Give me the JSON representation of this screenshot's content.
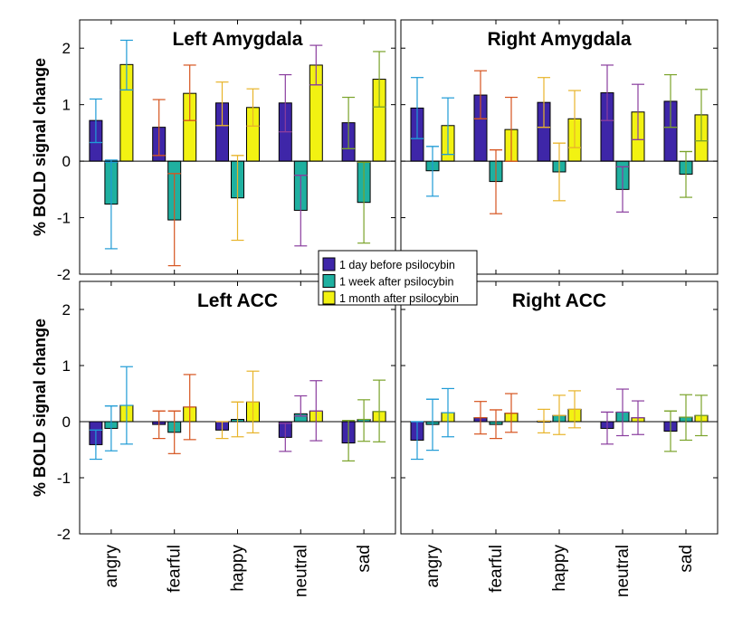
{
  "chart_data": {
    "type": "bar",
    "ylabel": "% BOLD signal change",
    "ylim": [
      -2,
      2.5
    ],
    "yticks": [
      "-2",
      "-1",
      "0",
      "1",
      "2"
    ],
    "categories": [
      "angry",
      "fearful",
      "happy",
      "neutral",
      "sad"
    ],
    "legend": {
      "placement": "center",
      "entries": [
        "1 day before psilocybin",
        "1 week after psilocybin",
        "1 month after psilocybin"
      ]
    },
    "colors": {
      "series": [
        "#3e26a8",
        "#1fb0a0",
        "#f2f212"
      ],
      "errorbars": [
        "#1f9bd6",
        "#d6541f",
        "#e8b42a",
        "#8a3d9e",
        "#7aa32a"
      ],
      "zero_line": "#000000",
      "median_line": [
        "#1f9bd6",
        "#d6541f",
        "#e8b42a",
        "#8a3d9e",
        "#7aa32a"
      ]
    },
    "panels": [
      {
        "title": "Left Amygdala",
        "series": [
          {
            "name": "1 day before psilocybin",
            "values": [
              0.72,
              0.6,
              1.03,
              1.03,
              0.68
            ],
            "lower": [
              0.33,
              0.1,
              0.63,
              0.52,
              0.22
            ],
            "upper": [
              1.1,
              1.09,
              1.4,
              1.53,
              1.13
            ],
            "median": [
              0.33,
              0.1,
              0.63,
              0.52,
              0.22
            ]
          },
          {
            "name": "1 week after psilocybin",
            "values": [
              -0.76,
              -1.04,
              -0.65,
              -0.87,
              -0.73
            ],
            "lower": [
              -1.55,
              -1.85,
              -1.4,
              -1.5,
              -1.45
            ],
            "upper": [
              0.02,
              -0.22,
              0.1,
              -0.25,
              -0.02
            ],
            "median": [
              -0.02,
              -0.22,
              0.1,
              -0.25,
              -0.02
            ]
          },
          {
            "name": "1 month after psilocybin",
            "values": [
              1.71,
              1.2,
              0.95,
              1.7,
              1.45
            ],
            "lower": [
              1.26,
              0.72,
              0.62,
              1.35,
              0.96
            ],
            "upper": [
              2.14,
              1.7,
              1.28,
              2.05,
              1.94
            ],
            "median": [
              1.26,
              0.72,
              0.62,
              1.35,
              0.96
            ]
          }
        ]
      },
      {
        "title": "Right Amygdala",
        "series": [
          {
            "name": "1 day before psilocybin",
            "values": [
              0.94,
              1.17,
              1.04,
              1.21,
              1.06
            ],
            "lower": [
              0.4,
              0.75,
              0.6,
              0.72,
              0.6
            ],
            "upper": [
              1.48,
              1.6,
              1.48,
              1.7,
              1.53
            ],
            "median": [
              0.4,
              0.75,
              0.6,
              0.72,
              0.6
            ]
          },
          {
            "name": "1 week after psilocybin",
            "values": [
              -0.17,
              -0.36,
              -0.19,
              -0.5,
              -0.23
            ],
            "lower": [
              -0.62,
              -0.93,
              -0.7,
              -0.9,
              -0.64
            ],
            "upper": [
              0.26,
              0.2,
              0.32,
              -0.1,
              0.17
            ],
            "median": [
              0.26,
              0.2,
              0.32,
              -0.1,
              0.17
            ]
          },
          {
            "name": "1 month after psilocybin",
            "values": [
              0.63,
              0.56,
              0.75,
              0.87,
              0.82
            ],
            "lower": [
              0.12,
              0.0,
              0.24,
              0.38,
              0.36
            ],
            "upper": [
              1.12,
              1.13,
              1.25,
              1.36,
              1.27
            ],
            "median": [
              0.12,
              0.0,
              0.24,
              0.38,
              0.36
            ]
          }
        ]
      },
      {
        "title": "Left ACC",
        "series": [
          {
            "name": "1 day before psilocybin",
            "values": [
              -0.41,
              -0.05,
              -0.15,
              -0.28,
              -0.38
            ],
            "lower": [
              -0.67,
              -0.3,
              -0.3,
              -0.53,
              -0.7
            ],
            "upper": [
              -0.15,
              0.19,
              0.0,
              -0.03,
              0.02
            ],
            "median": [
              -0.15,
              0.19,
              0.0,
              -0.03,
              0.02
            ]
          },
          {
            "name": "1 week after psilocybin",
            "values": [
              -0.12,
              -0.19,
              0.04,
              0.14,
              0.04
            ],
            "lower": [
              -0.52,
              -0.57,
              -0.27,
              0.1,
              -0.35
            ],
            "upper": [
              0.28,
              0.19,
              0.35,
              0.46,
              0.39
            ],
            "median": [
              0.28,
              0.19,
              0.35,
              0.1,
              0.04
            ]
          },
          {
            "name": "1 month after psilocybin",
            "values": [
              0.29,
              0.26,
              0.35,
              0.19,
              0.18
            ],
            "lower": [
              -0.4,
              -0.32,
              -0.2,
              -0.34,
              -0.36
            ],
            "upper": [
              0.98,
              0.84,
              0.9,
              0.73,
              0.74
            ],
            "median": [
              0.29,
              0.26,
              0.35,
              0.19,
              0.18
            ]
          }
        ]
      },
      {
        "title": "Right ACC",
        "series": [
          {
            "name": "1 day before psilocybin",
            "values": [
              -0.33,
              0.07,
              0.01,
              -0.12,
              -0.17
            ],
            "lower": [
              -0.67,
              -0.22,
              -0.2,
              -0.4,
              -0.53
            ],
            "upper": [
              0.0,
              0.36,
              0.22,
              0.17,
              0.19
            ],
            "median": [
              0.0,
              0.07,
              0.01,
              0.17,
              0.19
            ]
          },
          {
            "name": "1 week after psilocybin",
            "values": [
              -0.05,
              -0.05,
              0.11,
              0.17,
              0.08
            ],
            "lower": [
              -0.51,
              -0.3,
              -0.23,
              -0.25,
              -0.33
            ],
            "upper": [
              0.4,
              0.21,
              0.47,
              0.58,
              0.48
            ],
            "median": [
              0.4,
              0.21,
              0.11,
              0.17,
              0.08
            ]
          },
          {
            "name": "1 month after psilocybin",
            "values": [
              0.16,
              0.15,
              0.22,
              0.07,
              0.11
            ],
            "lower": [
              -0.27,
              -0.19,
              -0.11,
              -0.23,
              -0.25
            ],
            "upper": [
              0.59,
              0.5,
              0.55,
              0.37,
              0.47
            ],
            "median": [
              0.16,
              0.15,
              0.22,
              0.07,
              0.11
            ]
          }
        ]
      }
    ]
  }
}
